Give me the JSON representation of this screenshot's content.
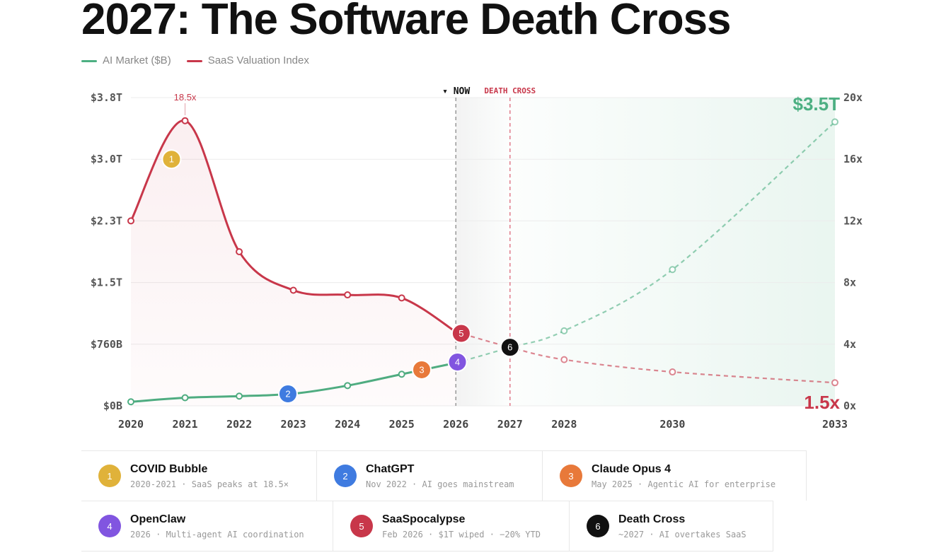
{
  "title": "2027: The Software Death Cross",
  "legend": [
    {
      "label": "AI Market ($B)",
      "color": "#4caf82"
    },
    {
      "label": "SaaS Valuation Index",
      "color": "#c8374a"
    }
  ],
  "chart_data": {
    "type": "line",
    "title": "2027: The Software Death Cross",
    "xlim": [
      2020,
      2033
    ],
    "x_ticks": [
      "2020",
      "2021",
      "2022",
      "2023",
      "2024",
      "2025",
      "2026",
      "2027",
      "2028",
      "2030",
      "2033"
    ],
    "y_left": {
      "label": "AI Market ($B)",
      "ylim": [
        0,
        3800
      ],
      "ticks": [
        "$3.8T",
        "$3.0T",
        "$2.3T",
        "$1.5T",
        "$760B",
        "$0B"
      ]
    },
    "y_right": {
      "label": "SaaS Valuation Index",
      "ylim": [
        0,
        20
      ],
      "ticks": [
        "20x",
        "16x",
        "12x",
        "8x",
        "4x",
        "0x"
      ]
    },
    "series": [
      {
        "name": "AI Market ($B)",
        "axis": "left",
        "color": "#4caf82",
        "x": [
          2020,
          2021,
          2022,
          2023,
          2024,
          2025,
          2026,
          2027,
          2028,
          2030,
          2033
        ],
        "values": [
          50,
          100,
          120,
          150,
          250,
          390,
          530,
          720,
          925,
          1680,
          3500
        ],
        "projected_from": 2026
      },
      {
        "name": "SaaS Valuation Index",
        "axis": "right",
        "color": "#c8374a",
        "x": [
          2020,
          2021,
          2022,
          2023,
          2024,
          2025,
          2026,
          2027,
          2028,
          2030,
          2033
        ],
        "values": [
          12,
          18.5,
          10,
          7.5,
          7.2,
          7,
          4.8,
          3.8,
          3,
          2.2,
          1.5
        ],
        "projected_from": 2026
      }
    ],
    "annotations": {
      "peak_label": "18.5x",
      "now_label": "▾ NOW",
      "now_x": 2026,
      "cross_label": "DEATH CROSS",
      "cross_x": 2027,
      "end_ai": "$3.5T",
      "end_saas": "1.5x"
    },
    "markers": [
      {
        "n": "1",
        "x": 2020.75,
        "axis": "right",
        "y": 16,
        "color": "#e0b23a"
      },
      {
        "n": "2",
        "x": 2022.9,
        "axis": "left",
        "y": 148,
        "color": "#3f7be0"
      },
      {
        "n": "3",
        "x": 2025.37,
        "axis": "left",
        "y": 445,
        "color": "#e8793a"
      },
      {
        "n": "4",
        "x": 2026.03,
        "axis": "left",
        "y": 540,
        "color": "#8155e0"
      },
      {
        "n": "5",
        "x": 2026.1,
        "axis": "right",
        "y": 4.7,
        "color": "#c8374a"
      },
      {
        "n": "6",
        "x": 2027,
        "axis": "right",
        "y": 3.8,
        "color": "#111111"
      }
    ]
  },
  "events": [
    [
      {
        "n": "1",
        "color": "#e0b23a",
        "title": "COVID Bubble",
        "sub": "2020-2021 · SaaS peaks at 18.5×"
      },
      {
        "n": "2",
        "color": "#3f7be0",
        "title": "ChatGPT",
        "sub": "Nov 2022 · AI goes mainstream"
      },
      {
        "n": "3",
        "color": "#e8793a",
        "title": "Claude Opus 4",
        "sub": "May 2025 · Agentic AI for enterprise"
      }
    ],
    [
      {
        "n": "4",
        "color": "#8155e0",
        "title": "OpenClaw",
        "sub": "2026 · Multi-agent AI coordination"
      },
      {
        "n": "5",
        "color": "#c8374a",
        "title": "SaaSpocalypse",
        "sub": "Feb 2026 · $1T wiped · −20% YTD"
      },
      {
        "n": "6",
        "color": "#111111",
        "title": "Death Cross",
        "sub": "~2027 · AI overtakes SaaS"
      }
    ]
  ]
}
